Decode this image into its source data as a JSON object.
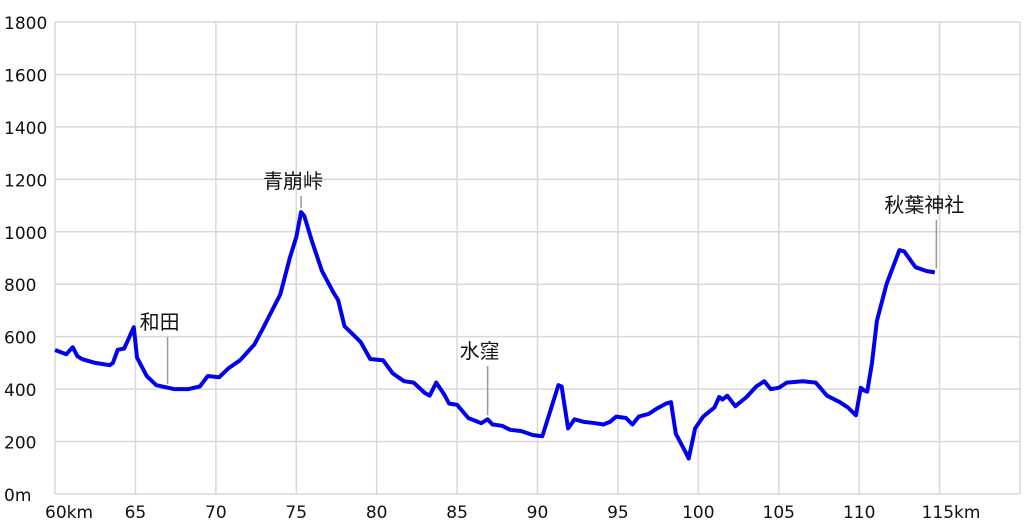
{
  "chart_data": {
    "type": "line",
    "title": "",
    "xlabel": "",
    "ylabel": "",
    "xlim": [
      60,
      120
    ],
    "ylim": [
      0,
      1800
    ],
    "grid": true,
    "line_color": "#0000ee",
    "grid_color": "#d8d8d8",
    "x_ticks": [
      {
        "value": 60,
        "label": "60km"
      },
      {
        "value": 65,
        "label": "65"
      },
      {
        "value": 70,
        "label": "70"
      },
      {
        "value": 75,
        "label": "75"
      },
      {
        "value": 80,
        "label": "80"
      },
      {
        "value": 85,
        "label": "85"
      },
      {
        "value": 90,
        "label": "90"
      },
      {
        "value": 95,
        "label": "95"
      },
      {
        "value": 100,
        "label": "100"
      },
      {
        "value": 105,
        "label": "105"
      },
      {
        "value": 110,
        "label": "110"
      },
      {
        "value": 115,
        "label": "115km"
      }
    ],
    "y_ticks": [
      {
        "value": 0,
        "label": "0m"
      },
      {
        "value": 200,
        "label": "200"
      },
      {
        "value": 400,
        "label": "400"
      },
      {
        "value": 600,
        "label": "600"
      },
      {
        "value": 800,
        "label": "800"
      },
      {
        "value": 1000,
        "label": "1000"
      },
      {
        "value": 1200,
        "label": "1200"
      },
      {
        "value": 1400,
        "label": "1400"
      },
      {
        "value": 1600,
        "label": "1600"
      },
      {
        "value": 1800,
        "label": "1800"
      }
    ],
    "annotations": [
      {
        "label": "和田",
        "x": 67.0,
        "y": 405
      },
      {
        "label": "青崩峠",
        "x": 75.3,
        "y": 1075
      },
      {
        "label": "水窪",
        "x": 86.9,
        "y": 285
      },
      {
        "label": "秋葉神社",
        "x": 114.8,
        "y": 845
      }
    ],
    "series": [
      {
        "x": [
          60.0,
          60.7,
          61.1,
          61.4,
          61.7,
          62.5,
          63.4,
          63.6,
          63.9,
          64.3,
          64.9,
          65.1,
          65.7,
          66.3,
          67.4,
          68.3,
          69.0,
          69.5,
          70.2,
          70.8,
          71.5,
          72.4,
          73.0,
          73.5,
          74.0,
          74.6,
          75.0,
          75.3,
          75.5,
          76.0,
          76.6,
          77.3,
          77.6,
          78.0,
          78.5,
          79.0,
          79.6,
          80.4,
          81.0,
          81.7,
          82.3,
          83.0,
          83.3,
          83.7,
          84.2,
          84.5,
          85.0,
          85.7,
          86.5,
          86.9,
          87.2,
          87.8,
          88.3,
          89.0,
          89.7,
          90.3,
          91.3,
          91.5,
          91.9,
          92.3,
          92.9,
          93.6,
          94.1,
          94.5,
          94.9,
          95.5,
          95.9,
          96.3,
          96.9,
          97.4,
          98.0,
          98.3,
          98.6,
          99.2,
          99.4,
          99.8,
          100.3,
          101.0,
          101.3,
          101.5,
          101.8,
          102.3,
          103.0,
          103.6,
          104.1,
          104.5,
          105.0,
          105.5,
          106.5,
          107.3,
          108.0,
          108.8,
          109.3,
          109.8,
          110.1,
          110.3,
          110.5,
          110.8,
          111.1,
          111.7,
          112.5,
          112.8,
          113.5,
          114.2,
          114.7
        ],
        "y": [
          549,
          533,
          560,
          525,
          514,
          500,
          491,
          500,
          550,
          555,
          636,
          520,
          450,
          415,
          400,
          400,
          410,
          450,
          445,
          480,
          510,
          570,
          640,
          700,
          760,
          900,
          980,
          1075,
          1060,
          960,
          850,
          770,
          740,
          640,
          610,
          580,
          515,
          510,
          460,
          430,
          425,
          385,
          375,
          425,
          380,
          345,
          340,
          290,
          270,
          285,
          265,
          260,
          245,
          240,
          225,
          220,
          415,
          410,
          250,
          285,
          275,
          270,
          265,
          275,
          295,
          290,
          265,
          295,
          305,
          325,
          345,
          350,
          230,
          160,
          135,
          250,
          295,
          330,
          370,
          360,
          375,
          335,
          370,
          410,
          430,
          400,
          405,
          425,
          430,
          425,
          375,
          350,
          330,
          300,
          405,
          395,
          390,
          500,
          660,
          800,
          930,
          925,
          865,
          850,
          845
        ]
      }
    ]
  }
}
